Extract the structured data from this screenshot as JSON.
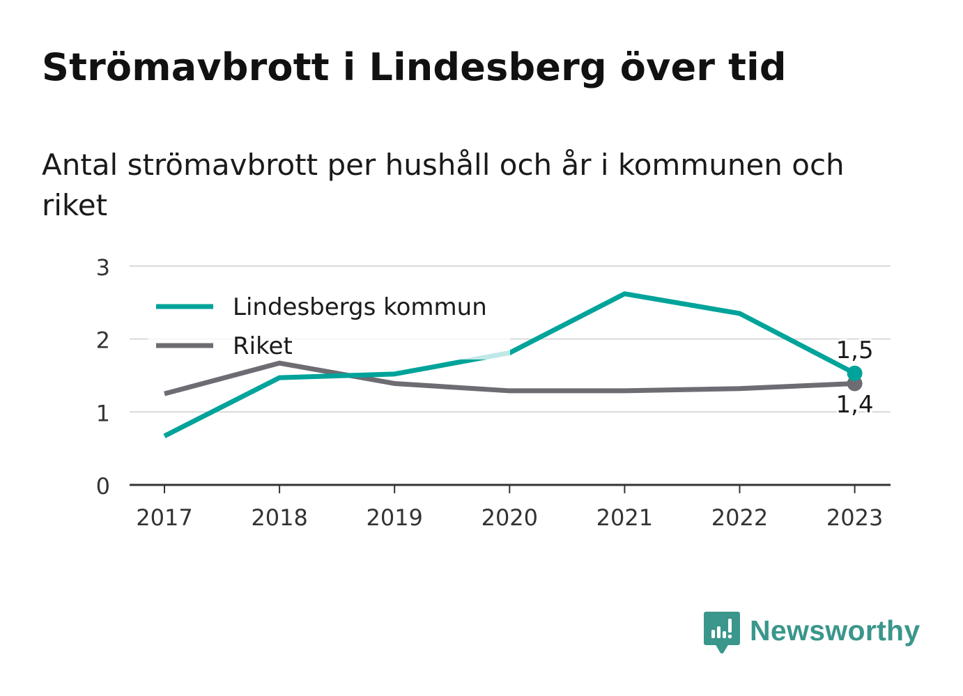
{
  "header": {
    "title": "Strömavbrott i Lindesberg över tid",
    "subtitle": "Antal strömavbrott per hushåll och år i kommunen och riket"
  },
  "brand": {
    "name": "Newsworthy",
    "icon": "newsworthy-chart-icon",
    "color": "#3b968c"
  },
  "chart_data": {
    "type": "line",
    "title": "",
    "xlabel": "",
    "ylabel": "",
    "x": [
      "2017",
      "2018",
      "2019",
      "2020",
      "2021",
      "2022",
      "2023"
    ],
    "ylim": [
      0,
      3
    ],
    "yticks": [
      "0",
      "1",
      "2",
      "3"
    ],
    "grid": true,
    "legend_position": "top-left",
    "series": [
      {
        "name": "Lindesbergs kommun",
        "color": "#00a39a",
        "values": [
          0.67,
          1.47,
          1.52,
          1.81,
          2.62,
          2.35,
          1.53
        ],
        "end_label": "1,5"
      },
      {
        "name": "Riket",
        "color": "#6e6c73",
        "values": [
          1.25,
          1.67,
          1.39,
          1.29,
          1.29,
          1.32,
          1.39
        ],
        "end_label": "1,4"
      }
    ]
  }
}
